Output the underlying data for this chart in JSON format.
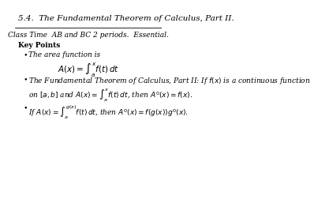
{
  "background_color": "#ffffff",
  "title_text": "5.4.  The Fundamental Theorem of Calculus, Part II.",
  "class_time_text": "Class Time  AB and BC 2 periods.  Essential.",
  "key_points_label": "Key Points",
  "bullet1_text": "The area function is",
  "bullet1_formula": "$A(x) = \\int_a^x f(t)\\, dt$",
  "bullet2_text": "The Fundamental Theorem of Calculus, Part II: If $f(x)$ is a continuous function",
  "bullet2_text2": "on $[a, b]$ and $A(x) = \\int_a^x f(t)\\, dt$, then $A'(x) = f(x)$.",
  "bullet3_text": "If $A(x) = \\int_a^{g(x)} f(t)\\, dt$, then $A'(x) = f(g(x))g'(x)$.",
  "title_fontsize": 7.5,
  "body_fontsize": 6.5,
  "formula_fontsize": 7.5
}
